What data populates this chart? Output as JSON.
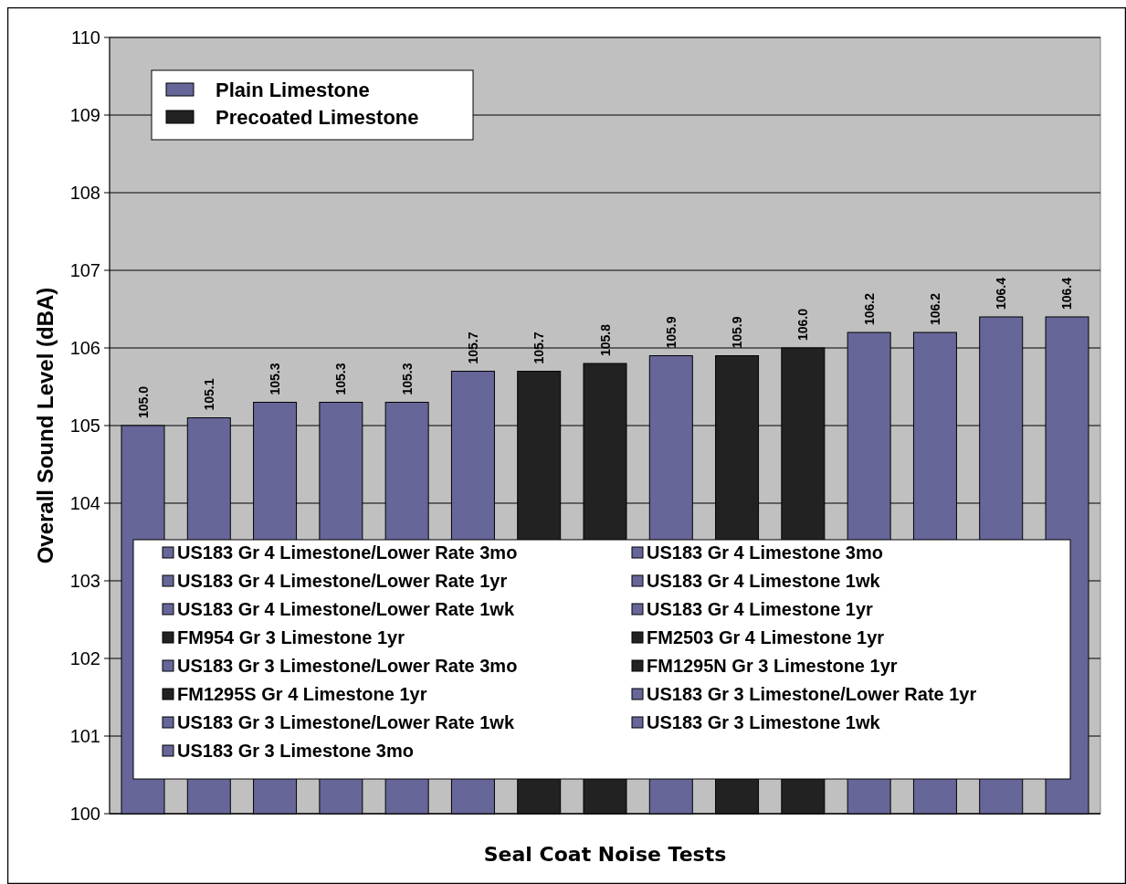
{
  "chart_data": {
    "type": "bar",
    "xlabel": "Seal Coat Noise Tests",
    "ylabel": "Overall Sound Level (dBA)",
    "categories": [
      null,
      null,
      null,
      null,
      null,
      null,
      null,
      null,
      null,
      null,
      null,
      null,
      null,
      null,
      null
    ],
    "ylim": [
      100,
      110
    ],
    "yticks": [
      100,
      101,
      102,
      103,
      104,
      105,
      106,
      107,
      108,
      109,
      110
    ],
    "grid": "y",
    "legend": "top left",
    "series": [
      {
        "name": "Plain Limestone",
        "color": "#666699",
        "values": [
          null,
          null,
          null,
          null,
          null,
          null,
          null,
          null,
          null,
          null,
          null,
          null,
          null,
          null,
          null
        ]
      },
      {
        "name": "Precoated Limestone",
        "color": "#222222",
        "values": [
          null,
          null,
          null,
          null,
          null,
          null,
          null,
          null,
          null,
          null,
          null,
          null,
          null,
          null,
          null
        ]
      },
      {
        "name": "US183 Gr 4 Limestone/Lower Rate 3mo",
        "color": "#666699",
        "values": [
          105.0,
          null,
          null,
          null,
          null,
          null,
          null,
          null,
          null,
          null,
          null,
          null,
          null,
          null,
          null
        ],
        "value_labels": [
          "105.0",
          null,
          null,
          null,
          null,
          null,
          null,
          null,
          null,
          null,
          null,
          null,
          null,
          null,
          null
        ]
      },
      {
        "name": "US183 Gr 4 Limestone 3mo",
        "color": "#666699",
        "values": [
          null,
          105.1,
          null,
          null,
          null,
          null,
          null,
          null,
          null,
          null,
          null,
          null,
          null,
          null,
          null
        ],
        "value_labels": [
          null,
          "105.1",
          null,
          null,
          null,
          null,
          null,
          null,
          null,
          null,
          null,
          null,
          null,
          null,
          null
        ]
      },
      {
        "name": "US183 Gr 4 Limestone/Lower Rate 1yr",
        "color": "#666699",
        "values": [
          null,
          null,
          105.3,
          null,
          null,
          null,
          null,
          null,
          null,
          null,
          null,
          null,
          null,
          null,
          null
        ],
        "value_labels": [
          null,
          null,
          "105.3",
          null,
          null,
          null,
          null,
          null,
          null,
          null,
          null,
          null,
          null,
          null,
          null
        ]
      },
      {
        "name": "US183 Gr 4 Limestone 1wk",
        "color": "#666699",
        "values": [
          null,
          null,
          null,
          105.3,
          null,
          null,
          null,
          null,
          null,
          null,
          null,
          null,
          null,
          null,
          null
        ],
        "value_labels": [
          null,
          null,
          null,
          "105.3",
          null,
          null,
          null,
          null,
          null,
          null,
          null,
          null,
          null,
          null,
          null
        ]
      },
      {
        "name": "US183 Gr 4 Limestone/Lower Rate 1wk",
        "color": "#666699",
        "values": [
          null,
          null,
          null,
          null,
          105.3,
          null,
          null,
          null,
          null,
          null,
          null,
          null,
          null,
          null,
          null
        ],
        "value_labels": [
          null,
          null,
          null,
          null,
          "105.3",
          null,
          null,
          null,
          null,
          null,
          null,
          null,
          null,
          null,
          null
        ]
      },
      {
        "name": "US183 Gr 4 Limestone 1yr",
        "color": "#666699",
        "values": [
          null,
          null,
          null,
          null,
          null,
          105.7,
          null,
          null,
          null,
          null,
          null,
          null,
          null,
          null,
          null
        ],
        "value_labels": [
          null,
          null,
          null,
          null,
          null,
          "105.7",
          null,
          null,
          null,
          null,
          null,
          null,
          null,
          null,
          null
        ]
      },
      {
        "name": "FM954 Gr 3 Limestone 1yr",
        "color": "#222222",
        "values": [
          null,
          null,
          null,
          null,
          null,
          null,
          105.7,
          null,
          null,
          null,
          null,
          null,
          null,
          null,
          null
        ],
        "value_labels": [
          null,
          null,
          null,
          null,
          null,
          null,
          "105.7",
          null,
          null,
          null,
          null,
          null,
          null,
          null,
          null
        ]
      },
      {
        "name": "FM2503 Gr 4 Limestone 1yr",
        "color": "#222222",
        "values": [
          null,
          null,
          null,
          null,
          null,
          null,
          null,
          105.8,
          null,
          null,
          null,
          null,
          null,
          null,
          null
        ],
        "value_labels": [
          null,
          null,
          null,
          null,
          null,
          null,
          null,
          "105.8",
          null,
          null,
          null,
          null,
          null,
          null,
          null
        ]
      },
      {
        "name": "US183 Gr 3 Limestone/Lower Rate 3mo",
        "color": "#666699",
        "values": [
          null,
          null,
          null,
          null,
          null,
          null,
          null,
          null,
          105.9,
          null,
          null,
          null,
          null,
          null,
          null
        ],
        "value_labels": [
          null,
          null,
          null,
          null,
          null,
          null,
          null,
          null,
          "105.9",
          null,
          null,
          null,
          null,
          null,
          null
        ]
      },
      {
        "name": "FM1295N Gr 3 Limestone 1yr",
        "color": "#222222",
        "values": [
          null,
          null,
          null,
          null,
          null,
          null,
          null,
          null,
          null,
          105.9,
          null,
          null,
          null,
          null,
          null
        ],
        "value_labels": [
          null,
          null,
          null,
          null,
          null,
          null,
          null,
          null,
          null,
          "105.9",
          null,
          null,
          null,
          null,
          null
        ]
      },
      {
        "name": "FM1295S Gr 4 Limestone 1yr",
        "color": "#222222",
        "values": [
          null,
          null,
          null,
          null,
          null,
          null,
          null,
          null,
          null,
          null,
          106.0,
          null,
          null,
          null,
          null
        ],
        "value_labels": [
          null,
          null,
          null,
          null,
          null,
          null,
          null,
          null,
          null,
          null,
          "106.0",
          null,
          null,
          null,
          null
        ]
      },
      {
        "name": "US183 Gr 3 Limestone/Lower Rate 1yr",
        "color": "#666699",
        "values": [
          null,
          null,
          null,
          null,
          null,
          null,
          null,
          null,
          null,
          null,
          null,
          106.2,
          null,
          null,
          null
        ],
        "value_labels": [
          null,
          null,
          null,
          null,
          null,
          null,
          null,
          null,
          null,
          null,
          null,
          "106.2",
          null,
          null,
          null
        ]
      },
      {
        "name": "US183 Gr 3 Limestone/Lower Rate 1wk",
        "color": "#666699",
        "values": [
          null,
          null,
          null,
          null,
          null,
          null,
          null,
          null,
          null,
          null,
          null,
          null,
          106.2,
          null,
          null
        ],
        "value_labels": [
          null,
          null,
          null,
          null,
          null,
          null,
          null,
          null,
          null,
          null,
          null,
          null,
          "106.2",
          null,
          null
        ]
      },
      {
        "name": "US183 Gr 3 Limestone 1wk",
        "color": "#666699",
        "values": [
          null,
          null,
          null,
          null,
          null,
          null,
          null,
          null,
          null,
          null,
          null,
          null,
          null,
          106.4,
          null
        ],
        "value_labels": [
          null,
          null,
          null,
          null,
          null,
          null,
          null,
          null,
          null,
          null,
          null,
          null,
          null,
          "106.4",
          null
        ]
      },
      {
        "name": "US183 Gr 3 Limestone 3mo",
        "color": "#666699",
        "values": [
          null,
          null,
          null,
          null,
          null,
          null,
          null,
          null,
          null,
          null,
          null,
          null,
          null,
          null,
          106.4
        ],
        "value_labels": [
          null,
          null,
          null,
          null,
          null,
          null,
          null,
          null,
          null,
          null,
          null,
          null,
          null,
          null,
          "106.4"
        ]
      }
    ]
  }
}
